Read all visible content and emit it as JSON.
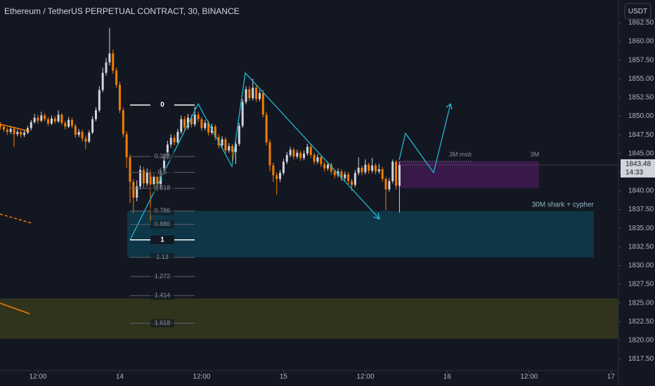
{
  "chart_data": {
    "type": "candlestick",
    "title": "Ethereum / TetherUS PERPETUAL CONTRACT, 30, BINANCE",
    "currency_button": "USDT",
    "countdown": "14:33",
    "up_color": "#d1d4dc",
    "down_color": "#f57c00",
    "xlim": [
      6.44,
      97.1
    ],
    "ylim": [
      1815.95,
      1865.55
    ],
    "xticks": [
      {
        "value": 12,
        "label": "12:00"
      },
      {
        "value": 24,
        "label": "14"
      },
      {
        "value": 36,
        "label": "12:00"
      },
      {
        "value": 48,
        "label": "15"
      },
      {
        "value": 60,
        "label": "12:00"
      },
      {
        "value": 72,
        "label": "16"
      },
      {
        "value": 84,
        "label": "12:00"
      },
      {
        "value": 96,
        "label": "17"
      }
    ],
    "yticks": [
      {
        "value": 1817.5,
        "label": "1817.50"
      },
      {
        "value": 1820,
        "label": "1820.00"
      },
      {
        "value": 1822.5,
        "label": "1822.50"
      },
      {
        "value": 1825,
        "label": "1825.00"
      },
      {
        "value": 1827.5,
        "label": "1827.50"
      },
      {
        "value": 1830,
        "label": "1830.00"
      },
      {
        "value": 1832.5,
        "label": "1832.50"
      },
      {
        "value": 1835,
        "label": "1835.00"
      },
      {
        "value": 1837.5,
        "label": "1837.50"
      },
      {
        "value": 1840,
        "label": "1840.00"
      },
      {
        "value": 1842.5,
        "label": "1842.50"
      },
      {
        "value": 1845,
        "label": "1845.00"
      },
      {
        "value": 1847.5,
        "label": "1847.50"
      },
      {
        "value": 1850,
        "label": "1850.00"
      },
      {
        "value": 1852.5,
        "label": "1852.50"
      },
      {
        "value": 1855,
        "label": "1855.00"
      },
      {
        "value": 1857.5,
        "label": "1857.50"
      },
      {
        "value": 1860,
        "label": "1860.00"
      },
      {
        "value": 1862.5,
        "label": "1862.50"
      }
    ],
    "x": [
      6.5,
      7,
      7.5,
      8,
      8.5,
      9,
      9.5,
      10,
      10.5,
      11,
      11.5,
      12,
      12.5,
      13,
      13.5,
      14,
      14.5,
      15,
      15.5,
      16,
      16.5,
      17,
      17.5,
      18,
      18.5,
      19,
      19.5,
      20,
      20.5,
      21,
      21.5,
      22,
      22.5,
      23,
      23.5,
      24,
      24.5,
      25,
      25.5,
      26,
      26.5,
      27,
      27.5,
      28,
      28.5,
      29,
      29.5,
      30,
      30.5,
      31,
      31.5,
      32,
      32.5,
      33,
      33.5,
      34,
      34.5,
      35,
      35.5,
      36,
      36.5,
      37,
      37.5,
      38,
      38.5,
      39,
      39.5,
      40,
      40.5,
      41,
      41.5,
      42,
      42.5,
      43,
      43.5,
      44,
      44.5,
      45,
      45.5,
      46,
      46.5,
      47,
      47.5,
      48,
      48.5,
      49,
      49.5,
      50,
      50.5,
      51,
      51.5,
      52,
      52.5,
      53,
      53.5,
      54,
      54.5,
      55,
      55.5,
      56,
      56.5,
      57,
      57.5,
      58,
      58.5,
      59,
      59.5,
      60,
      60.5,
      61,
      61.5,
      62,
      62.5,
      63,
      63.5,
      64,
      64.5,
      65
    ],
    "candles": [
      [
        1848.9,
        1849.2,
        1848.2,
        1848.6
      ],
      [
        1848.6,
        1848.9,
        1847.9,
        1848.2
      ],
      [
        1848.2,
        1848.5,
        1847.5,
        1847.9
      ],
      [
        1847.9,
        1848.7,
        1847.6,
        1848.3
      ],
      [
        1848.3,
        1848.6,
        1845.9,
        1847.6
      ],
      [
        1847.6,
        1848.2,
        1847.3,
        1847.9
      ],
      [
        1847.9,
        1848.1,
        1847.1,
        1847.5
      ],
      [
        1847.5,
        1848.1,
        1847.2,
        1847.8
      ],
      [
        1847.8,
        1848.7,
        1847.6,
        1848.4
      ],
      [
        1848.4,
        1849.5,
        1848.1,
        1849.2
      ],
      [
        1849.2,
        1850.3,
        1849.0,
        1849.8
      ],
      [
        1849.8,
        1850.2,
        1849.0,
        1849.4
      ],
      [
        1849.4,
        1850.6,
        1849.2,
        1850.1
      ],
      [
        1850.1,
        1850.4,
        1849.3,
        1849.6
      ],
      [
        1849.6,
        1849.9,
        1848.7,
        1849.0
      ],
      [
        1849.0,
        1850.1,
        1848.8,
        1849.7
      ],
      [
        1849.7,
        1850.0,
        1849.0,
        1849.3
      ],
      [
        1849.3,
        1850.8,
        1849.1,
        1850.2
      ],
      [
        1850.2,
        1850.4,
        1848.8,
        1849.1
      ],
      [
        1849.1,
        1849.4,
        1848.2,
        1848.6
      ],
      [
        1848.6,
        1849.9,
        1848.4,
        1849.5
      ],
      [
        1849.5,
        1849.8,
        1848.4,
        1848.7
      ],
      [
        1848.7,
        1849.0,
        1847.1,
        1847.5
      ],
      [
        1847.5,
        1848.3,
        1847.2,
        1847.9
      ],
      [
        1847.9,
        1848.2,
        1846.6,
        1847.0
      ],
      [
        1847.0,
        1847.4,
        1845.6,
        1846.6
      ],
      [
        1846.6,
        1848.1,
        1846.4,
        1847.8
      ],
      [
        1847.8,
        1850.0,
        1847.6,
        1849.6
      ],
      [
        1849.6,
        1851.2,
        1849.3,
        1850.8
      ],
      [
        1850.8,
        1854.0,
        1850.5,
        1853.5
      ],
      [
        1853.5,
        1856.5,
        1853.2,
        1855.8
      ],
      [
        1855.8,
        1857.8,
        1855.4,
        1857.2
      ],
      [
        1857.2,
        1861.8,
        1856.8,
        1858.4
      ],
      [
        1858.4,
        1858.9,
        1855.7,
        1856.1
      ],
      [
        1856.1,
        1856.5,
        1853.8,
        1854.2
      ],
      [
        1854.2,
        1854.6,
        1850.4,
        1850.8
      ],
      [
        1850.8,
        1851.2,
        1847.2,
        1847.6
      ],
      [
        1847.6,
        1848.0,
        1843.1,
        1844.5
      ],
      [
        1844.5,
        1844.9,
        1838.4,
        1841.2
      ],
      [
        1841.2,
        1841.6,
        1837.0,
        1839.1
      ],
      [
        1839.1,
        1841.4,
        1838.6,
        1840.6
      ],
      [
        1840.6,
        1843.4,
        1840.2,
        1842.8
      ],
      [
        1842.8,
        1843.2,
        1840.4,
        1841.0
      ],
      [
        1841.0,
        1843.0,
        1840.6,
        1842.5
      ],
      [
        1842.5,
        1842.9,
        1835.8,
        1840.8
      ],
      [
        1840.8,
        1842.4,
        1840.3,
        1841.9
      ],
      [
        1841.9,
        1842.3,
        1839.9,
        1840.4
      ],
      [
        1840.4,
        1843.1,
        1840.1,
        1842.7
      ],
      [
        1842.7,
        1845.0,
        1842.3,
        1844.6
      ],
      [
        1844.6,
        1846.7,
        1844.2,
        1846.2
      ],
      [
        1846.2,
        1847.6,
        1845.8,
        1847.1
      ],
      [
        1847.1,
        1847.5,
        1846.1,
        1846.5
      ],
      [
        1846.5,
        1848.3,
        1846.2,
        1847.9
      ],
      [
        1847.9,
        1850.1,
        1847.6,
        1849.6
      ],
      [
        1849.6,
        1850.0,
        1848.1,
        1848.5
      ],
      [
        1848.5,
        1850.3,
        1848.2,
        1849.8
      ],
      [
        1849.8,
        1850.2,
        1848.5,
        1848.9
      ],
      [
        1848.9,
        1851.3,
        1848.6,
        1850.2
      ],
      [
        1850.2,
        1850.6,
        1849.2,
        1849.6
      ],
      [
        1849.6,
        1849.9,
        1848.0,
        1848.4
      ],
      [
        1848.4,
        1849.5,
        1848.1,
        1849.1
      ],
      [
        1849.1,
        1849.4,
        1847.4,
        1847.8
      ],
      [
        1847.8,
        1849.0,
        1847.5,
        1848.6
      ],
      [
        1848.6,
        1848.9,
        1846.8,
        1847.2
      ],
      [
        1847.2,
        1847.6,
        1845.7,
        1846.1
      ],
      [
        1846.1,
        1847.3,
        1845.8,
        1846.9
      ],
      [
        1846.9,
        1847.2,
        1845.0,
        1845.4
      ],
      [
        1845.4,
        1846.4,
        1845.1,
        1846.0
      ],
      [
        1846.0,
        1846.3,
        1844.0,
        1845.2
      ],
      [
        1845.2,
        1846.7,
        1843.6,
        1846.3
      ],
      [
        1846.3,
        1849.1,
        1846.0,
        1848.7
      ],
      [
        1848.7,
        1852.3,
        1848.4,
        1851.9
      ],
      [
        1851.9,
        1854.0,
        1851.6,
        1853.6
      ],
      [
        1853.6,
        1854.0,
        1852.0,
        1852.4
      ],
      [
        1852.4,
        1855.0,
        1852.1,
        1853.8
      ],
      [
        1853.8,
        1854.2,
        1851.9,
        1852.3
      ],
      [
        1852.3,
        1853.5,
        1852.0,
        1853.1
      ],
      [
        1853.1,
        1853.5,
        1849.8,
        1850.2
      ],
      [
        1850.2,
        1850.6,
        1846.1,
        1846.5
      ],
      [
        1846.5,
        1846.9,
        1842.6,
        1843.4
      ],
      [
        1843.4,
        1843.8,
        1841.2,
        1842.1
      ],
      [
        1842.1,
        1842.5,
        1839.5,
        1841.6
      ],
      [
        1841.6,
        1842.8,
        1841.2,
        1842.4
      ],
      [
        1842.4,
        1844.3,
        1842.1,
        1843.9
      ],
      [
        1843.9,
        1845.2,
        1843.6,
        1844.8
      ],
      [
        1844.8,
        1845.9,
        1844.5,
        1845.5
      ],
      [
        1845.5,
        1845.8,
        1844.2,
        1844.6
      ],
      [
        1844.6,
        1845.5,
        1844.3,
        1845.1
      ],
      [
        1845.1,
        1845.4,
        1844.0,
        1844.4
      ],
      [
        1844.4,
        1845.4,
        1844.1,
        1845.0
      ],
      [
        1845.0,
        1846.3,
        1844.7,
        1845.9
      ],
      [
        1845.9,
        1846.2,
        1844.4,
        1844.8
      ],
      [
        1844.8,
        1845.1,
        1843.5,
        1843.9
      ],
      [
        1843.9,
        1844.9,
        1843.6,
        1844.5
      ],
      [
        1844.5,
        1844.8,
        1843.2,
        1843.6
      ],
      [
        1843.6,
        1843.9,
        1842.6,
        1843.0
      ],
      [
        1843.0,
        1843.9,
        1842.7,
        1843.5
      ],
      [
        1843.5,
        1843.8,
        1842.2,
        1842.6
      ],
      [
        1842.6,
        1842.9,
        1841.7,
        1842.1
      ],
      [
        1842.1,
        1843.0,
        1841.8,
        1842.6
      ],
      [
        1842.6,
        1842.9,
        1841.3,
        1841.7
      ],
      [
        1841.7,
        1842.6,
        1841.4,
        1842.2
      ],
      [
        1842.2,
        1842.5,
        1840.9,
        1841.3
      ],
      [
        1841.3,
        1841.6,
        1840.0,
        1840.8
      ],
      [
        1840.8,
        1842.8,
        1840.5,
        1842.4
      ],
      [
        1842.4,
        1844.5,
        1842.1,
        1843.1
      ],
      [
        1843.1,
        1843.4,
        1842.1,
        1842.5
      ],
      [
        1842.5,
        1844.2,
        1842.2,
        1843.5
      ],
      [
        1843.5,
        1843.8,
        1842.3,
        1842.7
      ],
      [
        1842.7,
        1844.4,
        1842.4,
        1843.4
      ],
      [
        1843.4,
        1843.7,
        1842.2,
        1842.6
      ],
      [
        1842.6,
        1843.6,
        1842.3,
        1842.9
      ],
      [
        1842.9,
        1843.2,
        1841.2,
        1841.6
      ],
      [
        1841.6,
        1841.9,
        1837.4,
        1840.2
      ],
      [
        1840.2,
        1841.7,
        1839.9,
        1841.3
      ],
      [
        1841.3,
        1844.2,
        1841.0,
        1843.9
      ],
      [
        1843.9,
        1844.1,
        1840.2,
        1840.7
      ],
      [
        1840.7,
        1843.9,
        1837.1,
        1843.48
      ]
    ],
    "fib": {
      "from": 1851.5,
      "to": 1833.45,
      "levels": [
        0,
        0.382,
        0.5,
        0.618,
        0.786,
        0.886,
        1,
        1.13,
        1.272,
        1.414,
        1.618
      ]
    },
    "zones": [
      {
        "label": "30M shark + cypher",
        "x": [
          25.08,
          93.48
        ],
        "y": [
          1831.1,
          1837.3
        ],
        "color": "rgba(0,170,200,0.22)"
      },
      {
        "label": "3M msb",
        "x": [
          64.84,
          85.45
        ],
        "y": [
          1840.4,
          1843.96
        ],
        "color": "rgba(120,30,140,0.38)"
      },
      {
        "x": [
          6.44,
          97.1
        ],
        "y": [
          1820.2,
          1825.6
        ],
        "color": "rgba(120,120,20,0.3)"
      }
    ],
    "zone_tag": "3M"
  }
}
